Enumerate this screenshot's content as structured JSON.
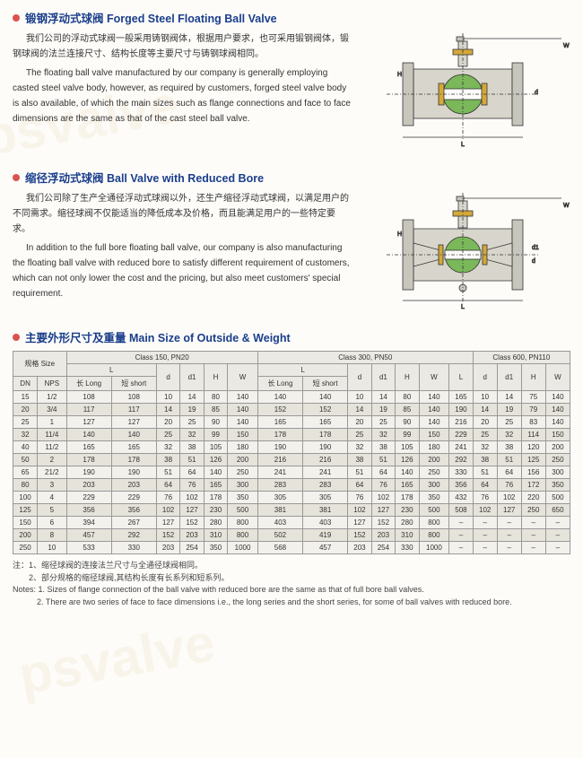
{
  "section1": {
    "title": "锻钢浮动式球阀 Forged Steel Floating Ball Valve",
    "para_cn": "我们公司的浮动式球阀一般采用铸钢阀体，根据用户要求，也可采用锻钢阀体，锻钢球阀的法兰连接尺寸、结构长度等主要尺寸与铸钢球阀相同。",
    "para_en": "The floating ball valve manufactured by our company is generally employing casted steel valve body, however, as required by customers, forged steel valve body is also available, of which the main sizes such as flange connections and face to face dimensions are the same as that of the cast steel ball valve."
  },
  "section2": {
    "title": "缩径浮动式球阀 Ball Valve with Reduced Bore",
    "para_cn": "我们公司除了生产全通径浮动式球阀以外，还生产缩径浮动式球阀，以满足用户的不同需求。缩径球阀不仅能适当的降低成本及价格，而且能满足用户的一些特定要求。",
    "para_en": "In addition to the full bore floating ball valve, our company is also manufacturing the floating ball valve with reduced bore to satisfy different requirement of customers, which can not only lower the cost and the pricing, but also meet customers' special requirement."
  },
  "section3": {
    "title": "主要外形尺寸及重量 Main Size of Outside & Weight"
  },
  "diagram": {
    "body_fill": "#d8d5cc",
    "ball_fill": "#7ab85a",
    "seat_fill": "#d4a93a",
    "line_color": "#333",
    "flange_fill": "#c8c5bc"
  },
  "table": {
    "header_bg": "#ebe9e3",
    "cell_bg": "#f3f1ec",
    "alt_bg": "#e6e3db",
    "border": "#999",
    "h_size": "规格 Size",
    "h_c150": "Class 150, PN20",
    "h_c300": "Class 300, PN50",
    "h_c600": "Class 600, PN110",
    "h_dn": "DN",
    "h_nps": "NPS",
    "h_L": "L",
    "h_long": "长 Long",
    "h_short": "短 short",
    "h_d": "d",
    "h_d1": "d1",
    "h_H": "H",
    "h_W": "W",
    "rows": [
      {
        "dn": "15",
        "nps": "1/2",
        "c1": [
          "108",
          "108",
          "10",
          "14",
          "80",
          "140"
        ],
        "c3": [
          "140",
          "140",
          "10",
          "14",
          "80",
          "140",
          "165"
        ],
        "c6": [
          "10",
          "14",
          "75",
          "140"
        ]
      },
      {
        "dn": "20",
        "nps": "3/4",
        "c1": [
          "117",
          "117",
          "14",
          "19",
          "85",
          "140"
        ],
        "c3": [
          "152",
          "152",
          "14",
          "19",
          "85",
          "140",
          "190"
        ],
        "c6": [
          "14",
          "19",
          "79",
          "140"
        ]
      },
      {
        "dn": "25",
        "nps": "1",
        "c1": [
          "127",
          "127",
          "20",
          "25",
          "90",
          "140"
        ],
        "c3": [
          "165",
          "165",
          "20",
          "25",
          "90",
          "140",
          "216"
        ],
        "c6": [
          "20",
          "25",
          "83",
          "140"
        ]
      },
      {
        "dn": "32",
        "nps": "11/4",
        "c1": [
          "140",
          "140",
          "25",
          "32",
          "99",
          "150"
        ],
        "c3": [
          "178",
          "178",
          "25",
          "32",
          "99",
          "150",
          "229"
        ],
        "c6": [
          "25",
          "32",
          "114",
          "150"
        ]
      },
      {
        "dn": "40",
        "nps": "11/2",
        "c1": [
          "165",
          "165",
          "32",
          "38",
          "105",
          "180"
        ],
        "c3": [
          "190",
          "190",
          "32",
          "38",
          "105",
          "180",
          "241"
        ],
        "c6": [
          "32",
          "38",
          "120",
          "200"
        ]
      },
      {
        "dn": "50",
        "nps": "2",
        "c1": [
          "178",
          "178",
          "38",
          "51",
          "126",
          "200"
        ],
        "c3": [
          "216",
          "216",
          "38",
          "51",
          "126",
          "200",
          "292"
        ],
        "c6": [
          "38",
          "51",
          "125",
          "250"
        ]
      },
      {
        "dn": "65",
        "nps": "21/2",
        "c1": [
          "190",
          "190",
          "51",
          "64",
          "140",
          "250"
        ],
        "c3": [
          "241",
          "241",
          "51",
          "64",
          "140",
          "250",
          "330"
        ],
        "c6": [
          "51",
          "64",
          "156",
          "300"
        ]
      },
      {
        "dn": "80",
        "nps": "3",
        "c1": [
          "203",
          "203",
          "64",
          "76",
          "165",
          "300"
        ],
        "c3": [
          "283",
          "283",
          "64",
          "76",
          "165",
          "300",
          "356"
        ],
        "c6": [
          "64",
          "76",
          "172",
          "350"
        ]
      },
      {
        "dn": "100",
        "nps": "4",
        "c1": [
          "229",
          "229",
          "76",
          "102",
          "178",
          "350"
        ],
        "c3": [
          "305",
          "305",
          "76",
          "102",
          "178",
          "350",
          "432"
        ],
        "c6": [
          "76",
          "102",
          "220",
          "500"
        ]
      },
      {
        "dn": "125",
        "nps": "5",
        "c1": [
          "356",
          "356",
          "102",
          "127",
          "230",
          "500"
        ],
        "c3": [
          "381",
          "381",
          "102",
          "127",
          "230",
          "500",
          "508"
        ],
        "c6": [
          "102",
          "127",
          "250",
          "650"
        ]
      },
      {
        "dn": "150",
        "nps": "6",
        "c1": [
          "394",
          "267",
          "127",
          "152",
          "280",
          "800"
        ],
        "c3": [
          "403",
          "403",
          "127",
          "152",
          "280",
          "800",
          "–"
        ],
        "c6": [
          "–",
          "–",
          "–",
          "–"
        ]
      },
      {
        "dn": "200",
        "nps": "8",
        "c1": [
          "457",
          "292",
          "152",
          "203",
          "310",
          "800"
        ],
        "c3": [
          "502",
          "419",
          "152",
          "203",
          "310",
          "800",
          "–"
        ],
        "c6": [
          "–",
          "–",
          "–",
          "–"
        ]
      },
      {
        "dn": "250",
        "nps": "10",
        "c1": [
          "533",
          "330",
          "203",
          "254",
          "350",
          "1000"
        ],
        "c3": [
          "568",
          "457",
          "203",
          "254",
          "330",
          "1000",
          "–"
        ],
        "c6": [
          "–",
          "–",
          "–",
          "–"
        ]
      }
    ]
  },
  "notes": {
    "cn1": "注：1、缩径球阀的连接法兰尺寸与全通径球阀相同。",
    "cn2": "2、部分规格的缩径球阀,其结构长度有长系列和短系列。",
    "en1": "Notes: 1. Sizes of flange connection of the ball valve with reduced bore are the same as that of full bore ball valves.",
    "en2": "2. There are two series of face to face dimensions i.e., the long series and the short series, for some of ball valves with reduced bore."
  }
}
